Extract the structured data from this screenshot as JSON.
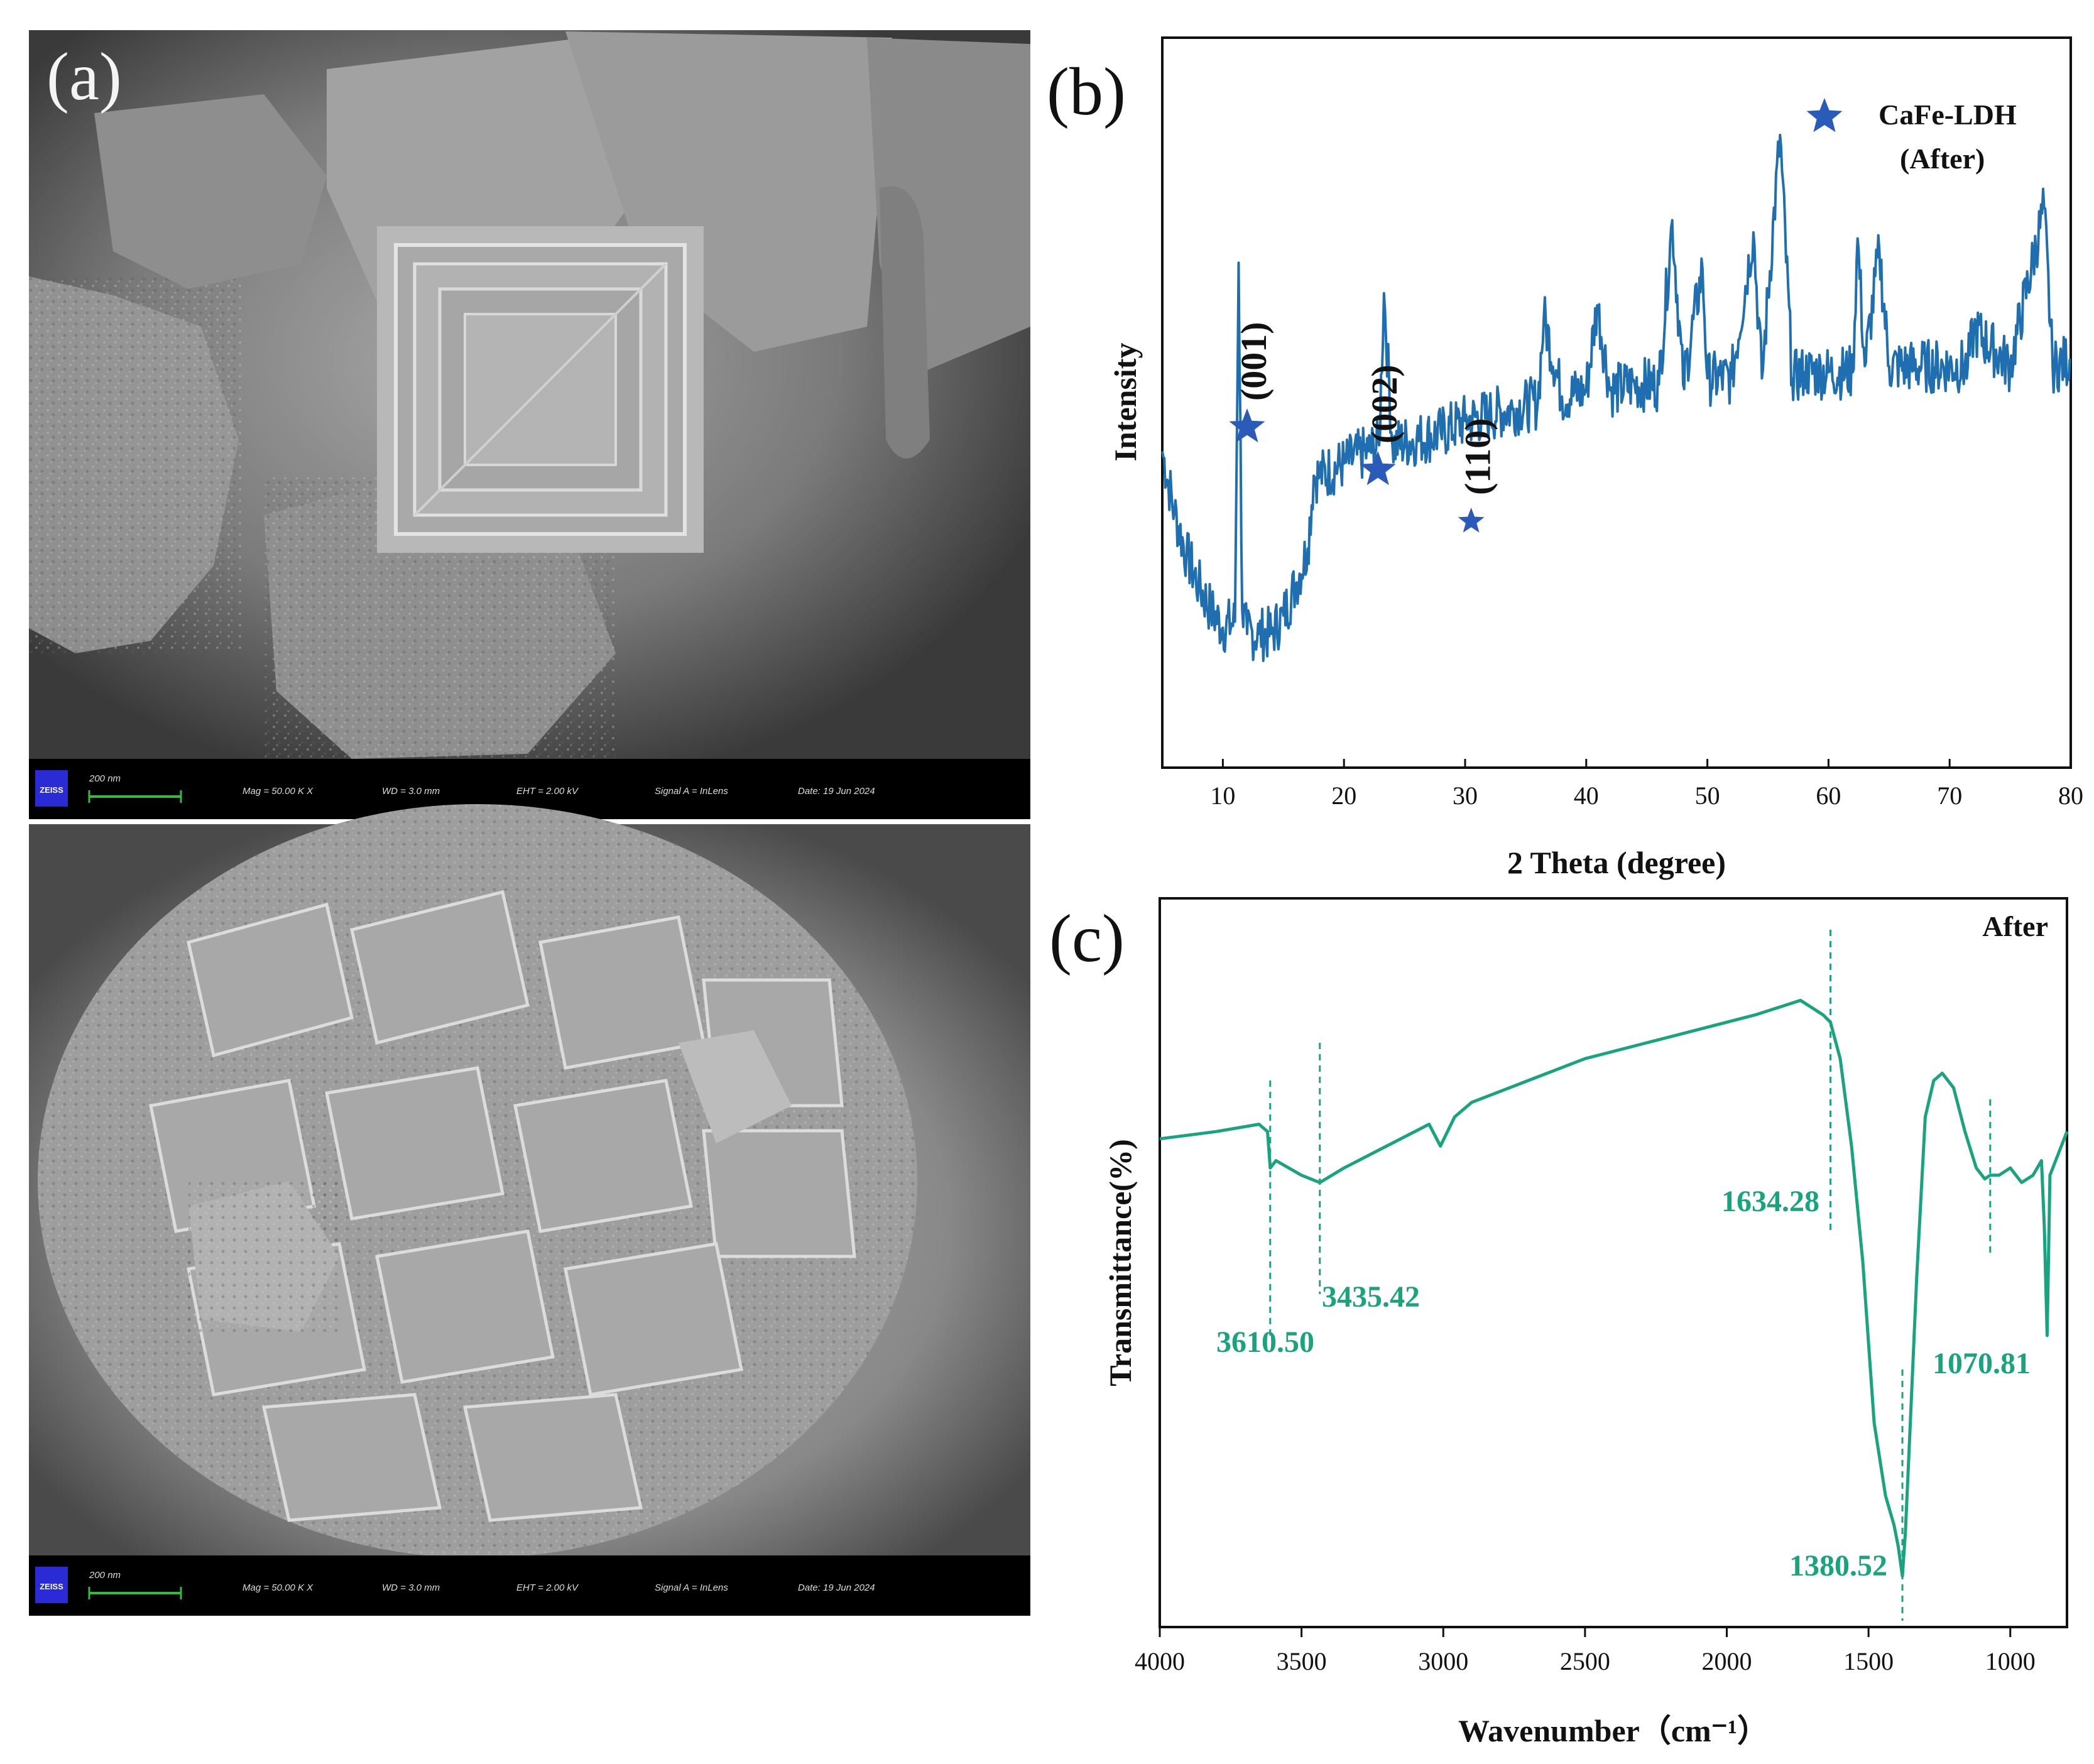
{
  "figure": {
    "panels": {
      "a": {
        "letter": "(a)"
      },
      "b": {
        "letter": "(b)"
      },
      "c": {
        "letter": "(c)"
      }
    },
    "sem_images": [
      {
        "scale_bar": "200 nm",
        "logo": "ZEISS",
        "mag": "Mag =  50.00 K X",
        "wd": "WD =  3.0 mm",
        "eht": "EHT =  2.00 kV",
        "signal": "Signal A = InLens",
        "date": "Date: 19 Jun 2024"
      },
      {
        "scale_bar": "200 nm",
        "logo": "ZEISS",
        "mag": "Mag =  50.00 K X",
        "wd": "WD =  3.0 mm",
        "eht": "EHT =  2.00 kV",
        "signal": "Signal A = InLens",
        "date": "Date: 19 Jun 2024"
      }
    ],
    "colors": {
      "xrd_line": "#1f6fb0",
      "star": "#2a5bb8",
      "ftir_line": "#1aa37f"
    }
  },
  "chart_data": [
    {
      "type": "line",
      "xlabel": "2 Theta (degree)",
      "ylabel": "Intensity",
      "xlim": [
        5,
        80
      ],
      "xticks": [
        10,
        20,
        30,
        40,
        50,
        60,
        70,
        80
      ],
      "y_ticks_shown": false,
      "legend": {
        "symbol": "star-icon",
        "lines": [
          "CaFe-LDH",
          "(After)"
        ],
        "placement": "top-right"
      },
      "series": [
        {
          "x": [
            5,
            6,
            7,
            8,
            9,
            10,
            11,
            11.3,
            11.6,
            12,
            13,
            14,
            15,
            16,
            17,
            17.5,
            18,
            20,
            22,
            22.9,
            23.3,
            24,
            26,
            28,
            30,
            32,
            34,
            36,
            36.5,
            38,
            40,
            40.9,
            42,
            44,
            46,
            47.1,
            48,
            49.6,
            50,
            52,
            53.8,
            54.5,
            56,
            57,
            58,
            60,
            62,
            62.4,
            63,
            64.2,
            65,
            68,
            71.5,
            72,
            75,
            77.8,
            78.5,
            80
          ],
          "y": [
            52,
            42,
            35,
            30,
            26,
            23,
            24,
            83,
            26,
            22,
            22,
            22,
            25,
            30,
            36,
            48,
            48,
            50,
            52,
            53,
            78,
            53,
            54,
            55,
            57,
            58,
            59,
            60,
            74,
            61,
            62,
            76,
            62,
            63,
            63,
            90,
            63,
            82,
            64,
            64,
            88,
            64,
            104,
            64,
            65,
            65,
            65,
            87,
            66,
            85,
            66,
            66,
            66,
            72,
            66,
            92,
            66,
            67
          ]
        }
      ],
      "annotations": [
        {
          "label": "(001)",
          "x": 12.0
        },
        {
          "label": "(002)",
          "x": 22.8
        },
        {
          "label": "(110)",
          "x": 30.5
        }
      ]
    },
    {
      "type": "line",
      "xlabel": "Wavenumber（cm⁻¹）",
      "ylabel": "Transmittance(%)",
      "xlim": [
        4000,
        800
      ],
      "xticks": [
        4000,
        3500,
        3000,
        2500,
        2000,
        1500,
        1000
      ],
      "y_ticks_shown": false,
      "label_in_plot": "After",
      "series": [
        {
          "x": [
            4000,
            3800,
            3650,
            3620,
            3610.5,
            3590,
            3500,
            3435.42,
            3350,
            3200,
            3050,
            3010,
            2960,
            2900,
            2700,
            2500,
            2300,
            2100,
            1900,
            1780,
            1740,
            1700,
            1660,
            1634.28,
            1600,
            1560,
            1520,
            1480,
            1440,
            1410,
            1395,
            1380.52,
            1370,
            1355,
            1330,
            1300,
            1270,
            1240,
            1200,
            1160,
            1120,
            1090,
            1070.81,
            1040,
            1000,
            960,
            920,
            890,
            880,
            870,
            860,
            840,
            810,
            800
          ],
          "y": [
            67,
            68,
            69,
            68,
            63,
            64,
            62,
            61,
            63,
            66,
            69,
            66,
            70,
            72,
            75,
            78,
            80,
            82,
            84,
            85.5,
            86,
            85,
            84,
            83,
            78,
            66,
            50,
            28,
            18,
            14,
            11,
            7,
            13,
            26,
            48,
            70,
            75,
            76,
            74,
            68,
            63,
            61.5,
            62,
            62,
            63,
            61,
            62,
            64,
            55,
            40,
            62,
            64,
            67,
            68
          ]
        }
      ],
      "annotations": [
        {
          "label": "3610.50",
          "x": 3610.5
        },
        {
          "label": "3435.42",
          "x": 3435.42
        },
        {
          "label": "1634.28",
          "x": 1634.28
        },
        {
          "label": "1380.52",
          "x": 1380.52
        },
        {
          "label": "1070.81",
          "x": 1070.81
        }
      ]
    }
  ]
}
